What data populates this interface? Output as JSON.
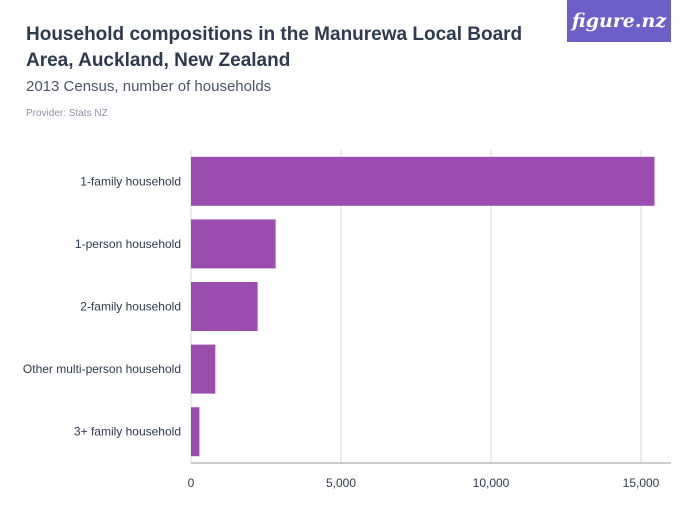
{
  "header": {
    "title": "Household compositions in the Manurewa Local Board Area, Auckland, New Zealand",
    "subtitle": "2013 Census, number of households",
    "provider": "Provider: Stats NZ",
    "brand": "figure.nz"
  },
  "colors": {
    "bar": "#9b4daf",
    "grid": "#d9d9d9",
    "brand_bg": "#6c5fc7"
  },
  "chart_data": {
    "type": "bar",
    "orientation": "horizontal",
    "categories": [
      "1-family household",
      "1-person household",
      "2-family household",
      "Other multi-person household",
      "3+ family household"
    ],
    "values": [
      15450,
      2820,
      2220,
      810,
      280
    ],
    "xlim": [
      0,
      16000
    ],
    "xticks": [
      0,
      5000,
      10000,
      15000
    ],
    "xtick_labels": [
      "0",
      "5,000",
      "10,000",
      "15,000"
    ],
    "grid": true
  }
}
